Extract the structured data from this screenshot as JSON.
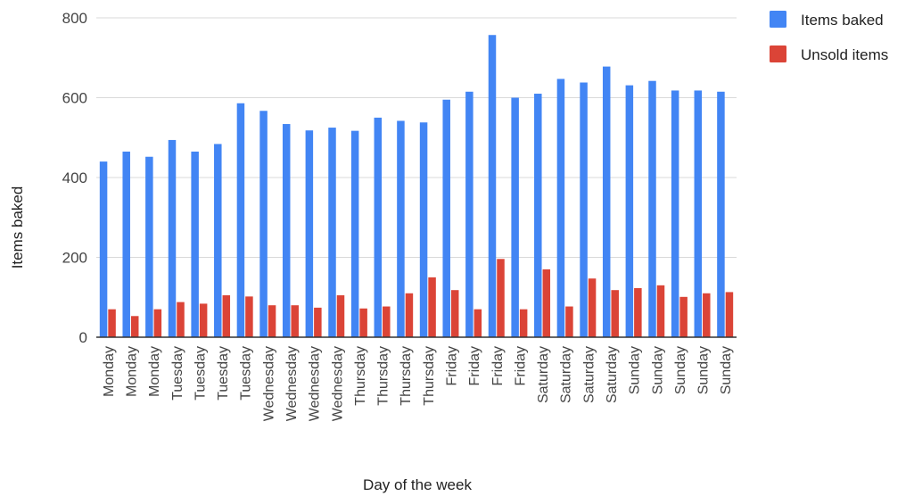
{
  "chart_data": {
    "type": "bar",
    "xlabel": "Day of the week",
    "ylabel": "Items baked",
    "ylim": [
      0,
      800
    ],
    "yticks": [
      0,
      200,
      400,
      600,
      800
    ],
    "grid": true,
    "legend_position": "top-right",
    "categories": [
      "Monday",
      "Monday",
      "Monday",
      "Tuesday",
      "Tuesday",
      "Tuesday",
      "Tuesday",
      "Wednesday",
      "Wednesday",
      "Wednesday",
      "Wednesday",
      "Thursday",
      "Thursday",
      "Thursday",
      "Thursday",
      "Friday",
      "Friday",
      "Friday",
      "Friday",
      "Saturday",
      "Saturday",
      "Saturday",
      "Saturday",
      "Sunday",
      "Sunday",
      "Sunday",
      "Sunday",
      "Sunday"
    ],
    "series": [
      {
        "name": "Items baked",
        "color": "#4285F4",
        "values": [
          440,
          465,
          452,
          494,
          465,
          484,
          586,
          567,
          534,
          518,
          525,
          517,
          550,
          542,
          538,
          595,
          615,
          757,
          600,
          610,
          647,
          638,
          678,
          631,
          642,
          618,
          618,
          615
        ]
      },
      {
        "name": "Unsold items",
        "color": "#DB4437",
        "values": [
          70,
          53,
          70,
          88,
          84,
          105,
          102,
          80,
          80,
          74,
          105,
          72,
          77,
          110,
          150,
          118,
          70,
          196,
          70,
          170,
          77,
          147,
          118,
          123,
          130,
          101,
          110,
          113
        ]
      }
    ]
  }
}
